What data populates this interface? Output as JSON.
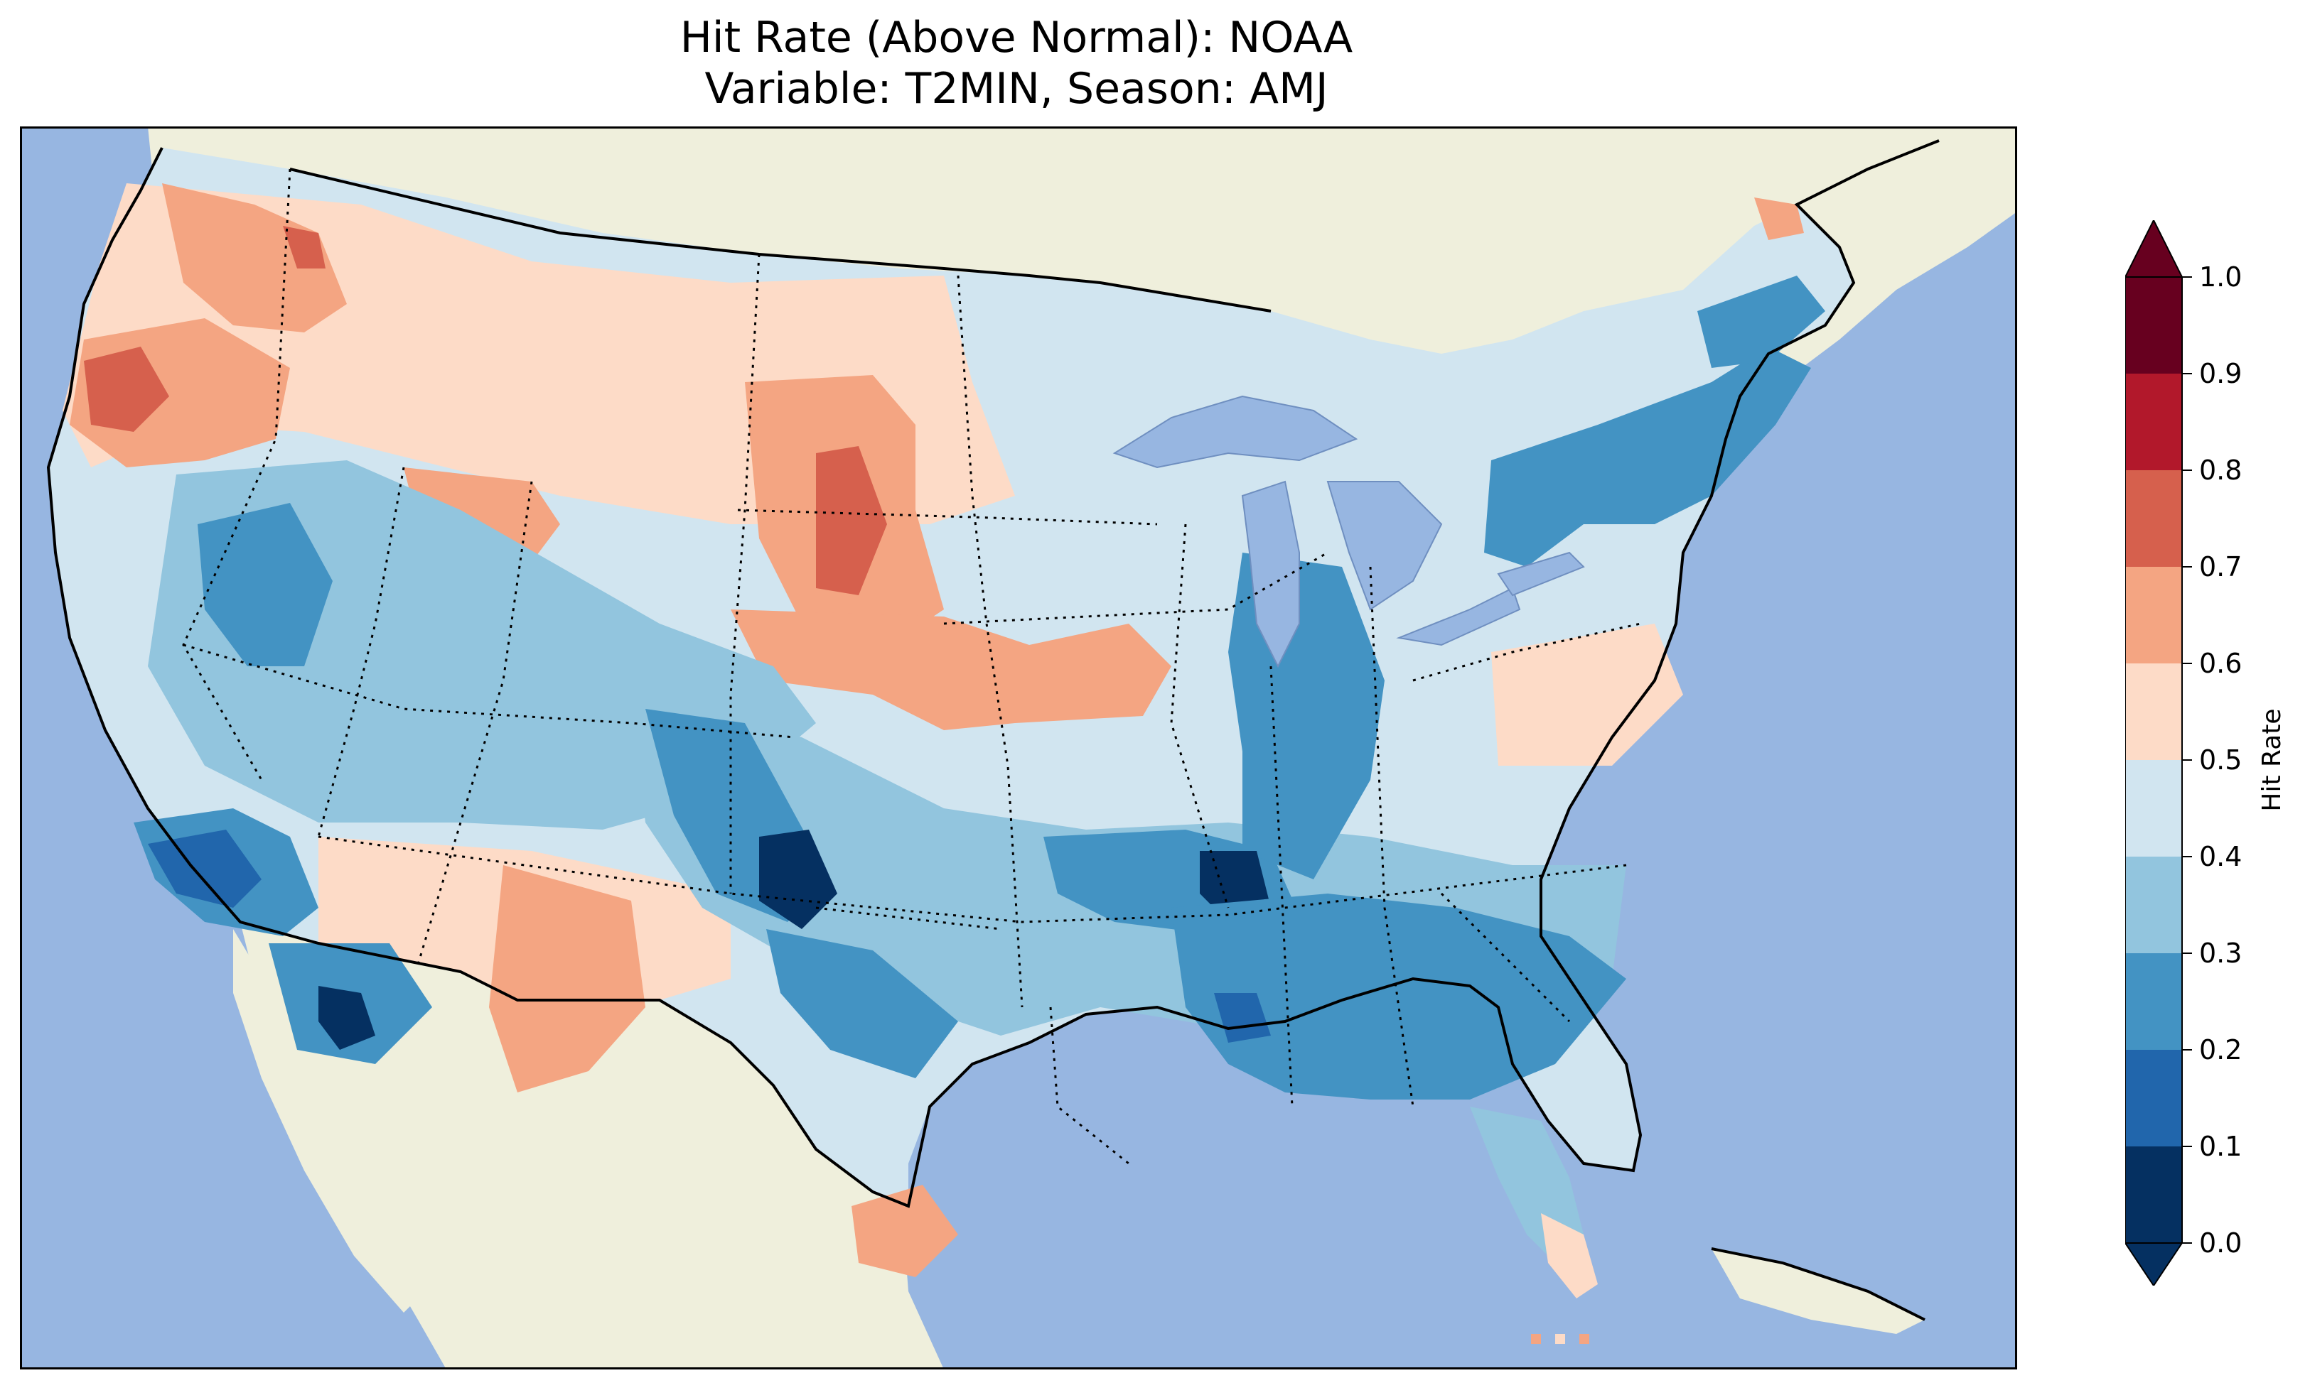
{
  "title": {
    "line1": "Hit Rate (Above Normal): NOAA",
    "line2": "Variable: T2MIN, Season: AMJ"
  },
  "colors": {
    "ocean": "#97b6e1",
    "land": "#efefdc",
    "lakes": "#97b6e1",
    "coast": "#000000",
    "border": "#000000"
  },
  "colorbar": {
    "label": "Hit Rate",
    "ticks": [
      "0.0",
      "0.1",
      "0.2",
      "0.3",
      "0.4",
      "0.5",
      "0.6",
      "0.7",
      "0.8",
      "0.9",
      "1.0"
    ],
    "bins": [
      {
        "from": 0.0,
        "to": 0.1,
        "color": "#053061"
      },
      {
        "from": 0.1,
        "to": 0.2,
        "color": "#2166ac"
      },
      {
        "from": 0.2,
        "to": 0.3,
        "color": "#4393c3"
      },
      {
        "from": 0.3,
        "to": 0.4,
        "color": "#92c5de"
      },
      {
        "from": 0.4,
        "to": 0.5,
        "color": "#d1e5f0"
      },
      {
        "from": 0.5,
        "to": 0.6,
        "color": "#fddbc7"
      },
      {
        "from": 0.6,
        "to": 0.7,
        "color": "#f4a582"
      },
      {
        "from": 0.7,
        "to": 0.8,
        "color": "#d6604d"
      },
      {
        "from": 0.8,
        "to": 0.9,
        "color": "#b2182b"
      },
      {
        "from": 0.9,
        "to": 1.0,
        "color": "#67001f"
      }
    ],
    "extend": "both",
    "under_color": "#053061",
    "over_color": "#67001f"
  },
  "map": {
    "projection": "Lambert Conformal",
    "region": "Contiguous United States",
    "state_borders": "dotted",
    "coastlines": "solid"
  }
}
